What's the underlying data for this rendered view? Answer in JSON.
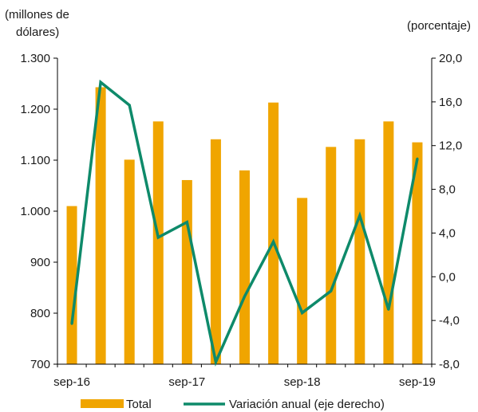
{
  "chart_data": {
    "type": "bar",
    "title": "",
    "ylabel_left_line1": "(millones  de",
    "ylabel_left_line2": "dólares)",
    "ylabel_right": "(porcentaje)",
    "x_tick_labels": [
      "sep-16",
      "sep-17",
      "sep-18",
      "sep-19"
    ],
    "x_tick_positions": [
      0,
      4,
      8,
      12
    ],
    "ylim_left": [
      700,
      1300
    ],
    "yticks_left": [
      "700",
      "800",
      "900",
      "1.000",
      "1.100",
      "1.200",
      "1.300"
    ],
    "ylim_right": [
      -8,
      20
    ],
    "yticks_right": [
      "-8,0",
      "-4,0",
      "0,0",
      "4,0",
      "8,0",
      "12,0",
      "16,0",
      "20,0"
    ],
    "series": [
      {
        "name": "Total",
        "type": "bar",
        "axis": "left",
        "color": "#F0A500",
        "values": [
          1010,
          1243,
          1101,
          1176,
          1061,
          1141,
          1080,
          1213,
          1026,
          1126,
          1141,
          1176,
          1135
        ]
      },
      {
        "name": "Variación anual (eje derecho)",
        "type": "line",
        "axis": "right",
        "color": "#0E8A6A",
        "values": [
          -4.3,
          17.8,
          15.7,
          3.6,
          5.0,
          -7.8,
          -1.8,
          3.2,
          -3.3,
          -1.3,
          5.6,
          -3.0,
          10.8
        ]
      }
    ],
    "legend_position": "bottom",
    "grid": false
  }
}
